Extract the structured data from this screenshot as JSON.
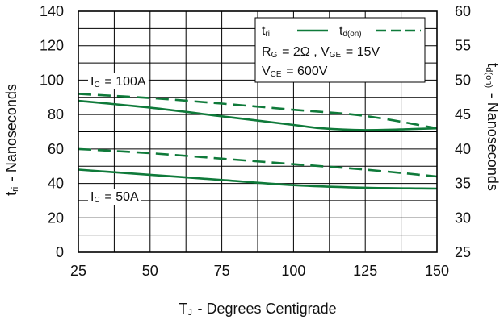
{
  "chart_data": {
    "type": "line",
    "xlabel": "T_J - Degrees Centigrade",
    "ylabel_left": "t_ri - Nanoseconds",
    "ylabel_right": "t_d(on) - Nanoseconds",
    "xlim": [
      25,
      150
    ],
    "ylim_left": [
      0,
      140
    ],
    "ylim_right": [
      25,
      60
    ],
    "x_ticks": [
      25,
      50,
      75,
      100,
      125,
      150
    ],
    "y_ticks_left": [
      0,
      20,
      40,
      60,
      80,
      100,
      120,
      140
    ],
    "y_ticks_right": [
      25,
      30,
      35,
      40,
      45,
      50,
      55,
      60
    ],
    "grid": true,
    "legend_position": "top-right",
    "conditions": {
      "rg": "R_G = 2Ω ,  V_GE = 15V",
      "vce": "V_CE = 600V"
    },
    "annotations": [
      "I_C = 100A",
      "I_C = 50A"
    ],
    "series": [
      {
        "name": "t_ri",
        "axis": "left",
        "group": "I_C = 100A",
        "style": "solid",
        "color": "#0f7a3a",
        "x": [
          25,
          50,
          75,
          100,
          110,
          125,
          140,
          150
        ],
        "y": [
          88,
          84,
          79,
          74,
          72,
          71,
          71.5,
          72
        ]
      },
      {
        "name": "t_d(on)",
        "axis": "right",
        "group": "I_C = 100A",
        "style": "dashed",
        "color": "#0f7a3a",
        "x": [
          25,
          50,
          75,
          100,
          125,
          150
        ],
        "y": [
          48,
          47.4,
          46.6,
          45.7,
          44.8,
          43
        ]
      },
      {
        "name": "t_ri",
        "axis": "left",
        "group": "I_C = 50A",
        "style": "solid",
        "color": "#0f7a3a",
        "x": [
          25,
          50,
          75,
          100,
          125,
          150
        ],
        "y": [
          48,
          45,
          42,
          39,
          37.5,
          37
        ]
      },
      {
        "name": "t_d(on)",
        "axis": "right",
        "group": "I_C = 50A",
        "style": "dashed",
        "color": "#0f7a3a",
        "x": [
          25,
          50,
          75,
          100,
          125,
          150
        ],
        "y": [
          40,
          39.4,
          38.6,
          37.8,
          37,
          36
        ]
      }
    ]
  }
}
